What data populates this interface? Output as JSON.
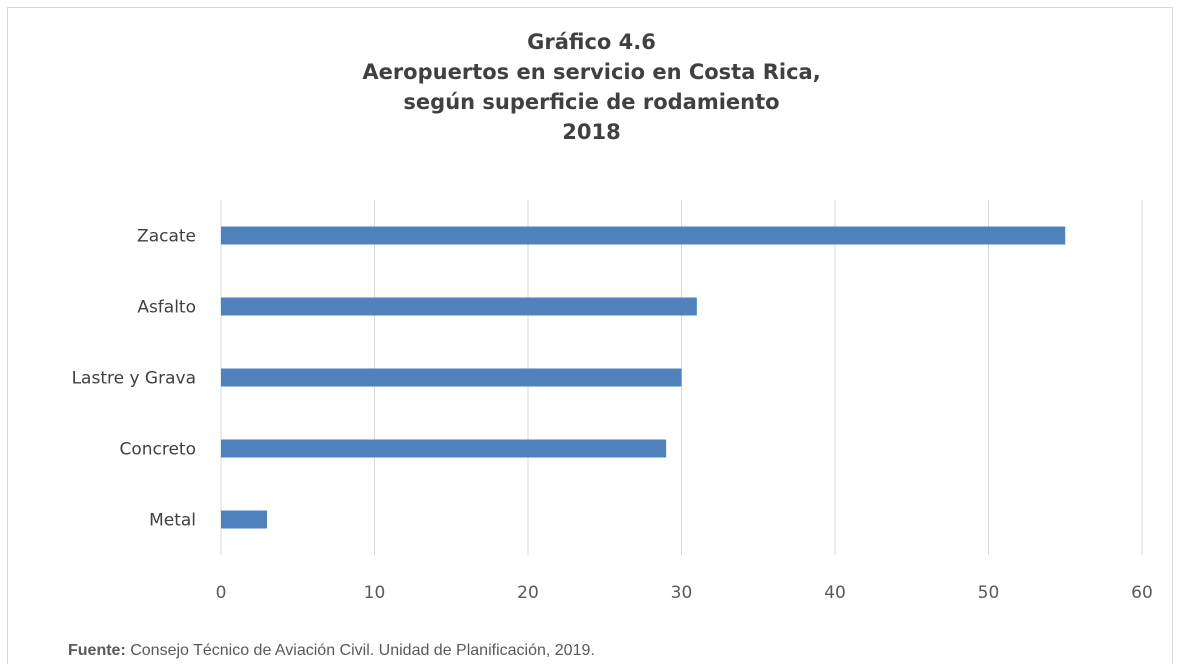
{
  "chart_data": {
    "type": "bar",
    "orientation": "horizontal",
    "title_lines": [
      "Gráfico 4.6",
      "Aeropuertos en servicio en Costa Rica,",
      "según superficie de rodamiento",
      "2018"
    ],
    "categories": [
      "Zacate",
      "Asfalto",
      "Lastre y Grava",
      "Concreto",
      "Metal"
    ],
    "values": [
      55,
      31,
      30,
      29,
      3
    ],
    "xlim": [
      0,
      60
    ],
    "xticks": [
      "0",
      "10",
      "20",
      "30",
      "40",
      "50",
      "60"
    ],
    "xlabel": "",
    "ylabel": "",
    "grid": "vertical",
    "legend": "none",
    "bar_color": "#4f81bd",
    "grid_color": "#d9d9d9"
  },
  "source": {
    "label": "Fuente:",
    "text": " Consejo Técnico de Aviación Civil. Unidad de Planificación, 2019."
  }
}
